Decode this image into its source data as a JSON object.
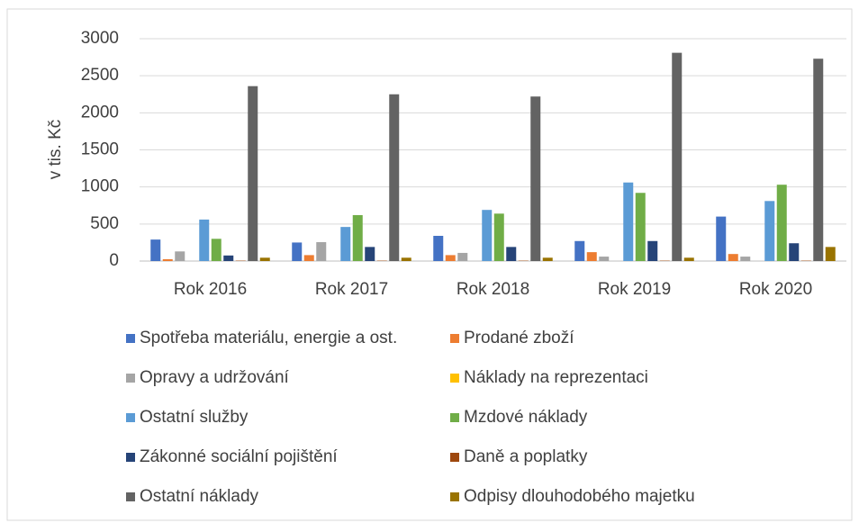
{
  "chart_data": {
    "type": "bar",
    "y_label": "v tis. Kč",
    "categories": [
      "Rok 2016",
      "Rok 2017",
      "Rok 2018",
      "Rok 2019",
      "Rok 2020"
    ],
    "series": [
      {
        "name": "Spotřeba materiálu, energie a ost.",
        "color": "#4472c4",
        "values": [
          290,
          250,
          340,
          270,
          600
        ]
      },
      {
        "name": "Prodané zboží",
        "color": "#ed7d31",
        "values": [
          25,
          80,
          80,
          120,
          95
        ]
      },
      {
        "name": "Opravy a udržování",
        "color": "#a5a5a5",
        "values": [
          130,
          255,
          110,
          60,
          60
        ]
      },
      {
        "name": "Náklady na reprezentaci",
        "color": "#ffc000",
        "values": [
          0,
          0,
          0,
          0,
          0
        ]
      },
      {
        "name": "Ostatní služby",
        "color": "#5b9bd5",
        "values": [
          560,
          460,
          690,
          1060,
          810
        ]
      },
      {
        "name": "Mzdové náklady",
        "color": "#70ad47",
        "values": [
          300,
          620,
          640,
          920,
          1030
        ]
      },
      {
        "name": "Zákonné sociální pojištění",
        "color": "#264478",
        "values": [
          75,
          190,
          190,
          270,
          240
        ]
      },
      {
        "name": "Daně a poplatky",
        "color": "#9e480e",
        "values": [
          5,
          5,
          5,
          5,
          5
        ]
      },
      {
        "name": "Ostatní náklady",
        "color": "#636363",
        "values": [
          2360,
          2250,
          2220,
          2810,
          2730
        ]
      },
      {
        "name": "Odpisy dlouhodobého majetku",
        "color": "#997300",
        "values": [
          45,
          45,
          45,
          45,
          190
        ]
      }
    ],
    "ylim": [
      0,
      3000
    ],
    "yticks": [
      0,
      500,
      1000,
      1500,
      2000,
      2500,
      3000
    ],
    "grid": true
  }
}
